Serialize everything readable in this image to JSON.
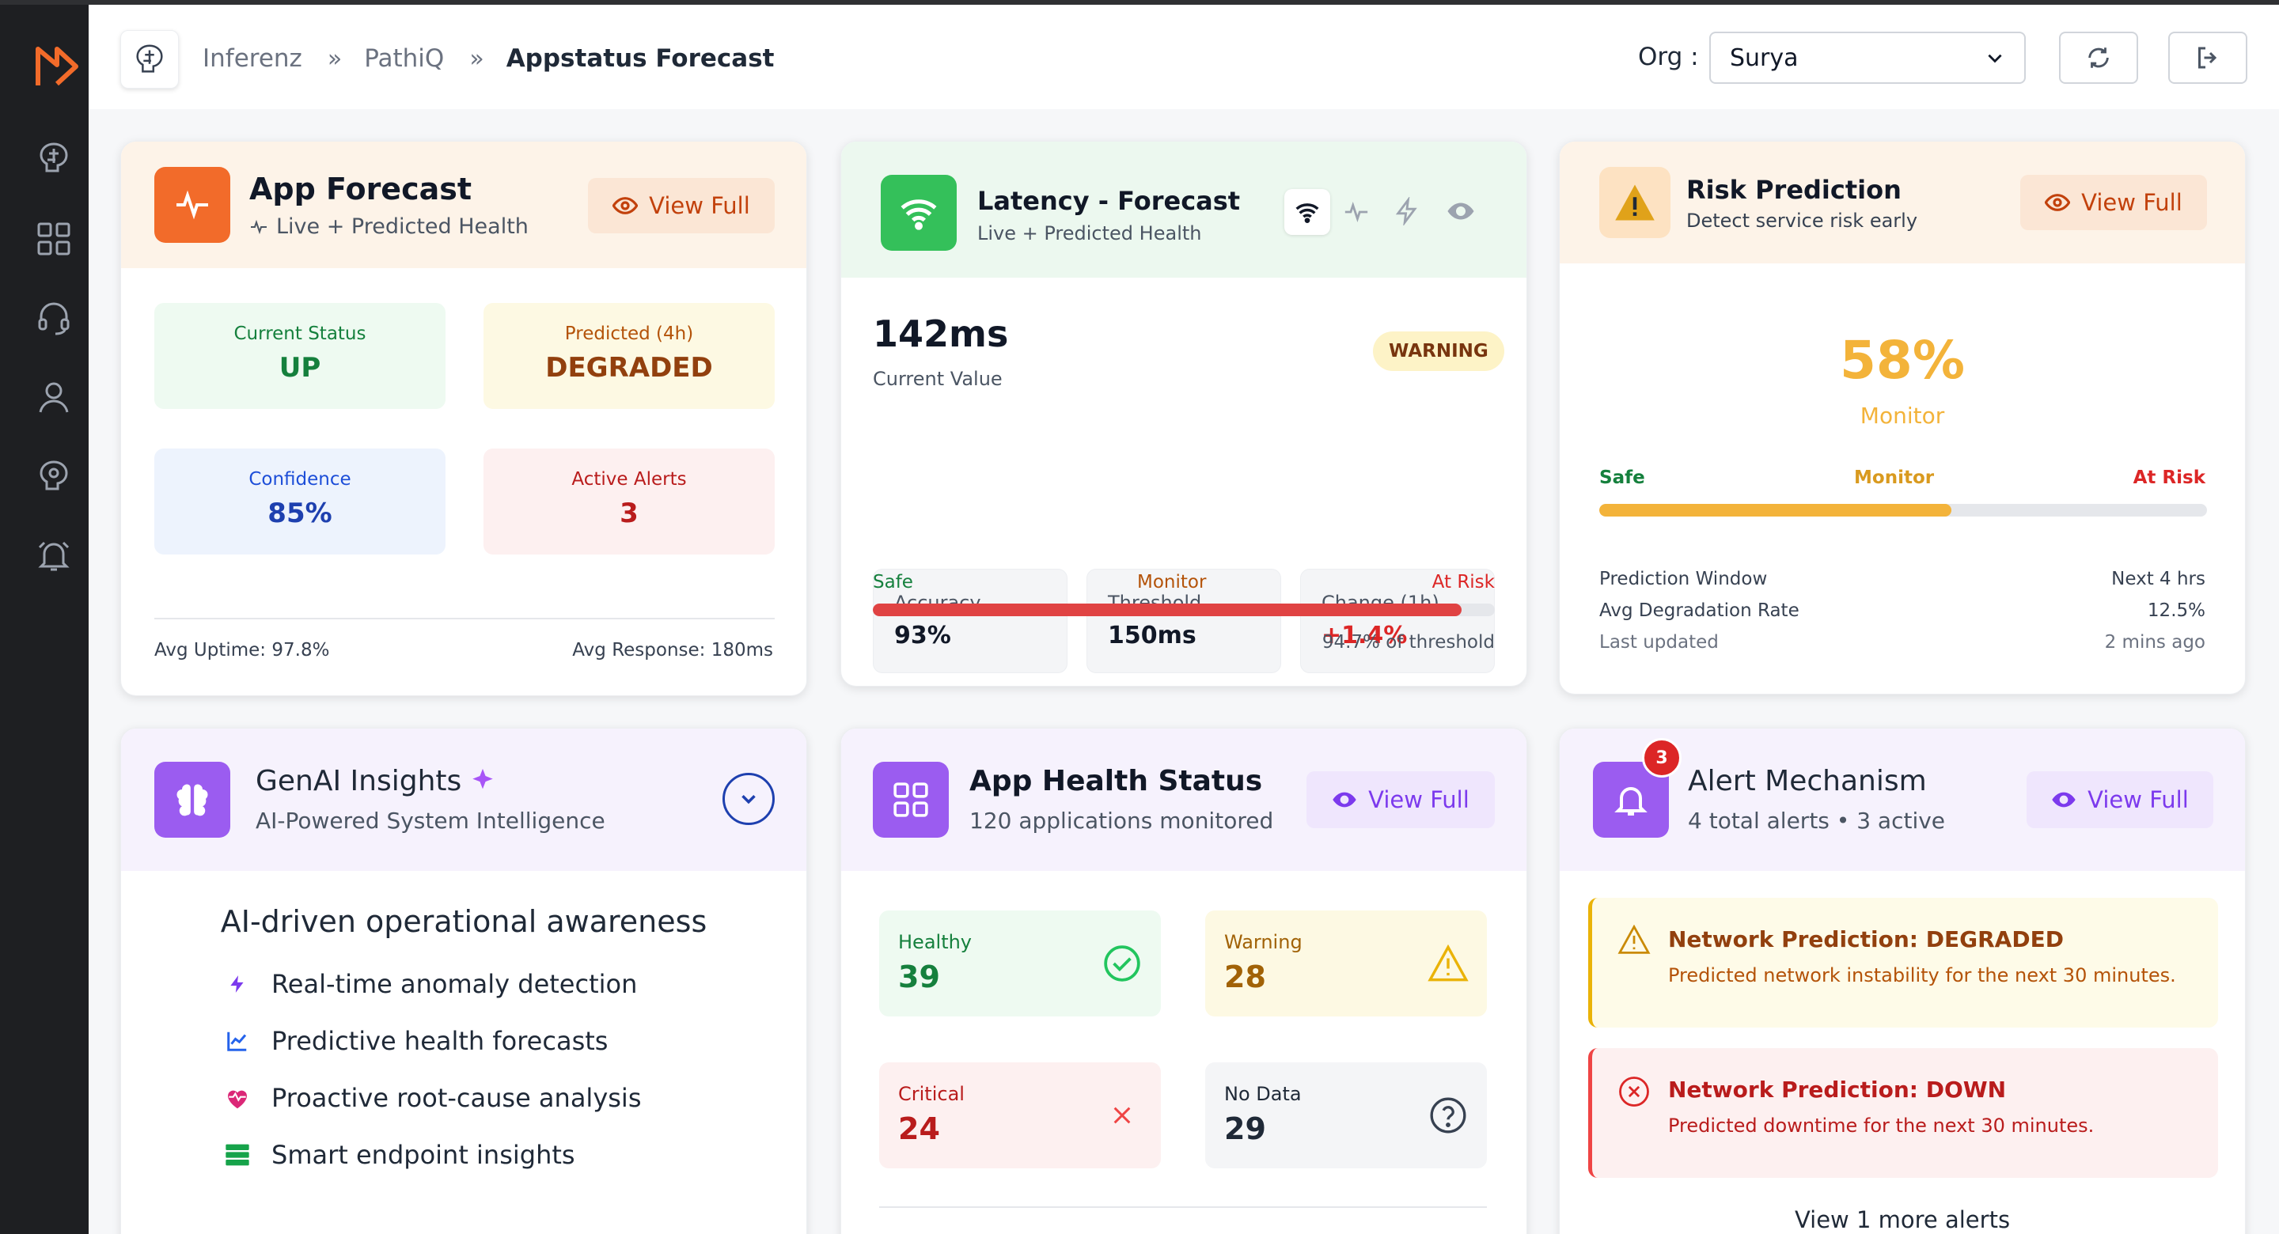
{
  "breadcrumb": [
    "Inferenz",
    "PathiQ",
    "Appstatus Forecast"
  ],
  "org": {
    "label": "Org :",
    "value": "Surya"
  },
  "app_forecast": {
    "title": "App Forecast",
    "subtitle": "Live + Predicted Health",
    "view_full": "View Full",
    "tiles": [
      {
        "label": "Current Status",
        "value": "UP"
      },
      {
        "label": "Predicted (4h)",
        "value": "DEGRADED"
      },
      {
        "label": "Confidence",
        "value": "85%"
      },
      {
        "label": "Active Alerts",
        "value": "3"
      }
    ],
    "avg_uptime": "Avg Uptime: 97.8%",
    "avg_response": "Avg Response: 180ms"
  },
  "latency": {
    "title": "Latency - Forecast",
    "subtitle": "Live + Predicted Health",
    "value": "142ms",
    "value_label": "Current Value",
    "badge": "WARNING",
    "metrics": [
      {
        "label": "Accuracy",
        "value": "93%"
      },
      {
        "label": "Threshold",
        "value": "150ms"
      },
      {
        "label": "Change (1h)",
        "value": "+1.4%"
      }
    ],
    "scale": {
      "safe": "Safe",
      "monitor": "Monitor",
      "risk": "At Risk"
    },
    "progress_fraction": 0.947,
    "progress_text": "94.7% of threshold"
  },
  "risk": {
    "title": "Risk Prediction",
    "subtitle": "Detect service risk early",
    "view_full": "View Full",
    "percent": "58%",
    "state": "Monitor",
    "scale": {
      "safe": "Safe",
      "monitor": "Monitor",
      "risk": "At Risk"
    },
    "progress_fraction": 0.58,
    "rows": [
      {
        "label": "Prediction Window",
        "value": "Next 4 hrs"
      },
      {
        "label": "Avg Degradation Rate",
        "value": "12.5%"
      },
      {
        "label": "Last updated",
        "value": "2 mins ago"
      }
    ]
  },
  "genai": {
    "title": "GenAI Insights",
    "subtitle": "AI-Powered System Intelligence",
    "heading": "AI-driven operational awareness",
    "features": [
      "Real-time anomaly detection",
      "Predictive health forecasts",
      "Proactive root-cause analysis",
      "Smart endpoint insights"
    ]
  },
  "health": {
    "title": "App Health Status",
    "subtitle": "120 applications monitored",
    "view_full": "View Full",
    "tiles": [
      {
        "label": "Healthy",
        "value": "39"
      },
      {
        "label": "Warning",
        "value": "28"
      },
      {
        "label": "Critical",
        "value": "24"
      },
      {
        "label": "No Data",
        "value": "29"
      }
    ]
  },
  "alerts": {
    "title": "Alert Mechanism",
    "subtitle": "4 total alerts • 3 active",
    "badge": "3",
    "view_full": "View Full",
    "items": [
      {
        "title": "Network Prediction: DEGRADED",
        "text": "Predicted network instability for the next 30 minutes."
      },
      {
        "title": "Network Prediction: DOWN",
        "text": "Predicted downtime for the next 30 minutes."
      }
    ],
    "more": "View 1 more alerts"
  }
}
